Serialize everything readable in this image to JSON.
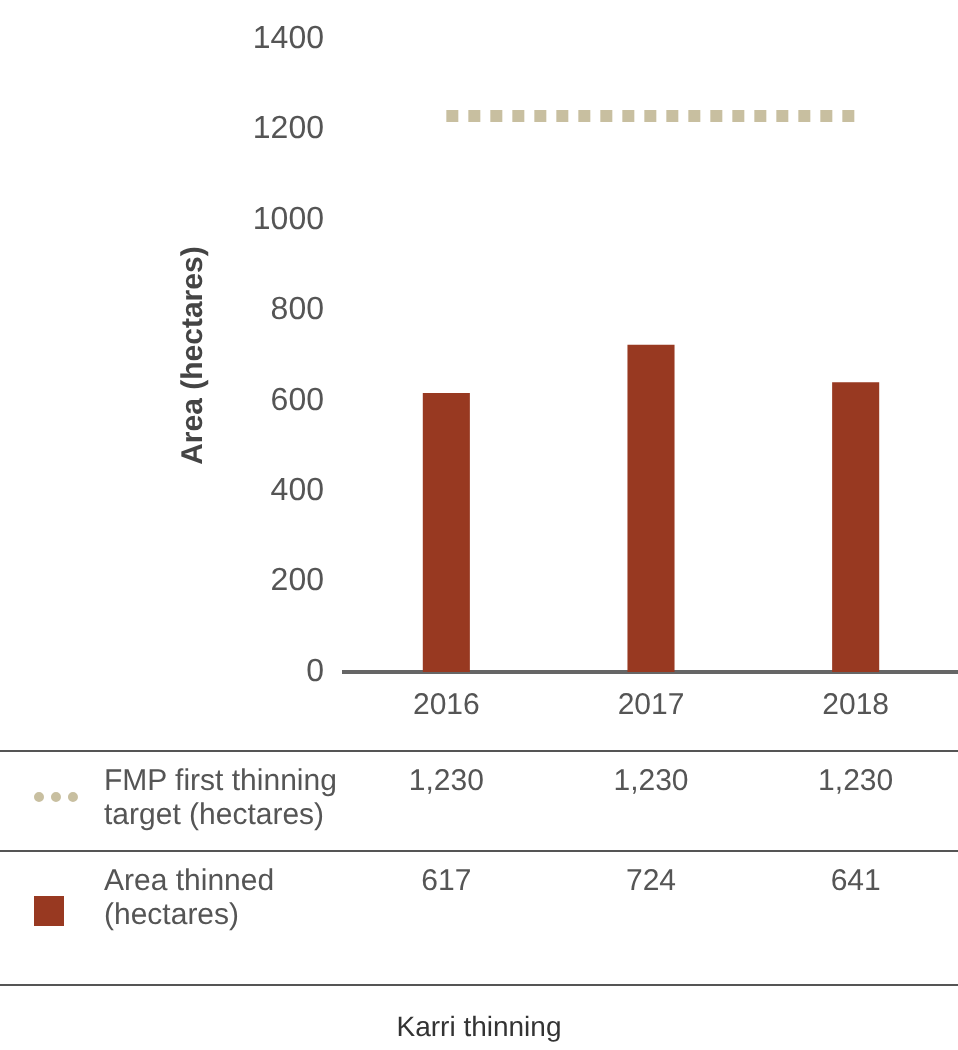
{
  "chart_data": {
    "type": "bar",
    "title": "Karri thinning",
    "ylabel": "Area (hectares)",
    "categories": [
      "2016",
      "2017",
      "2018"
    ],
    "series": [
      {
        "name": "FMP first thinning target (hectares)",
        "type": "line",
        "color": "#c8bfa0",
        "line_style": "dotted",
        "marker": "none",
        "values": [
          1230,
          1230,
          1230
        ],
        "value_labels": [
          "1,230",
          "1,230",
          "1,230"
        ]
      },
      {
        "name": "Area thinned (hectares)",
        "color": "#983921",
        "values": [
          617,
          724,
          641
        ],
        "value_labels": [
          "617",
          "724",
          "641"
        ]
      }
    ],
    "ylim": [
      0,
      1400
    ],
    "yticks": [
      0,
      200,
      400,
      600,
      800,
      1000,
      1200,
      1400
    ],
    "grid": false,
    "legend": "bottom"
  }
}
